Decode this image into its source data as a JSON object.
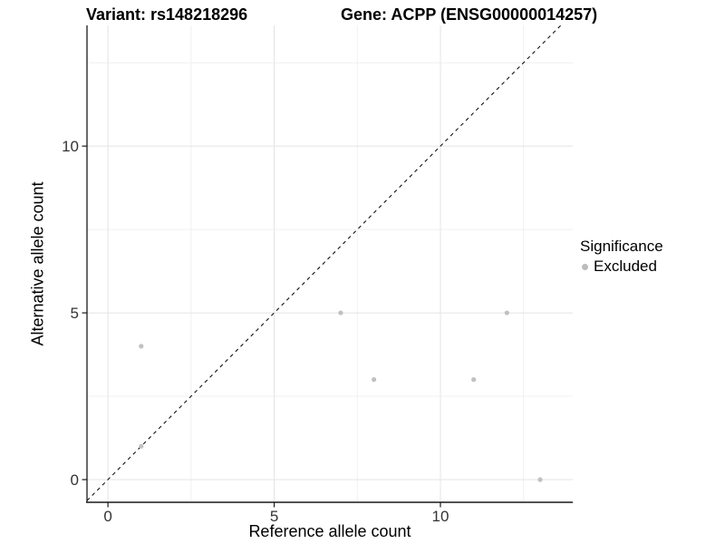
{
  "header": {
    "variant_title": "Variant: rs148218296",
    "gene_title": "Gene: ACPP (ENSG00000014257)"
  },
  "chart_data": {
    "type": "scatter",
    "title_left": "Variant: rs148218296",
    "title_right": "Gene: ACPP (ENSG00000014257)",
    "xlabel": "Reference allele count",
    "ylabel": "Alternative allele count",
    "xlim": [
      -0.63,
      13.98
    ],
    "ylim": [
      -0.68,
      13.62
    ],
    "x_ticks": [
      0,
      5,
      10
    ],
    "y_ticks": [
      0,
      5,
      10
    ],
    "x_minor": [
      2.5,
      7.5,
      12.5
    ],
    "y_minor": [
      2.5,
      7.5,
      12.5
    ],
    "grid": true,
    "identity_line": {
      "slope": 1,
      "intercept": 0,
      "style": "dashed",
      "color": "#111111"
    },
    "series": [
      {
        "name": "Excluded",
        "color": "#c1c1c1",
        "point_radius": 2.6,
        "points": [
          [
            1,
            1
          ],
          [
            1,
            4
          ],
          [
            7,
            5
          ],
          [
            8,
            3
          ],
          [
            11,
            3
          ],
          [
            12,
            5
          ],
          [
            13,
            0
          ]
        ]
      }
    ],
    "legend": {
      "position": "right",
      "title": "Significance",
      "entries": [
        {
          "label": "Excluded",
          "color": "#bcbcbc"
        }
      ]
    },
    "colors": {
      "background": "#ffffff",
      "grid_major": "#e4e4e4",
      "grid_minor": "#f0f0f0",
      "axis_line": "#1a1a1a",
      "tick_label": "#333333",
      "text": "#000000"
    }
  }
}
